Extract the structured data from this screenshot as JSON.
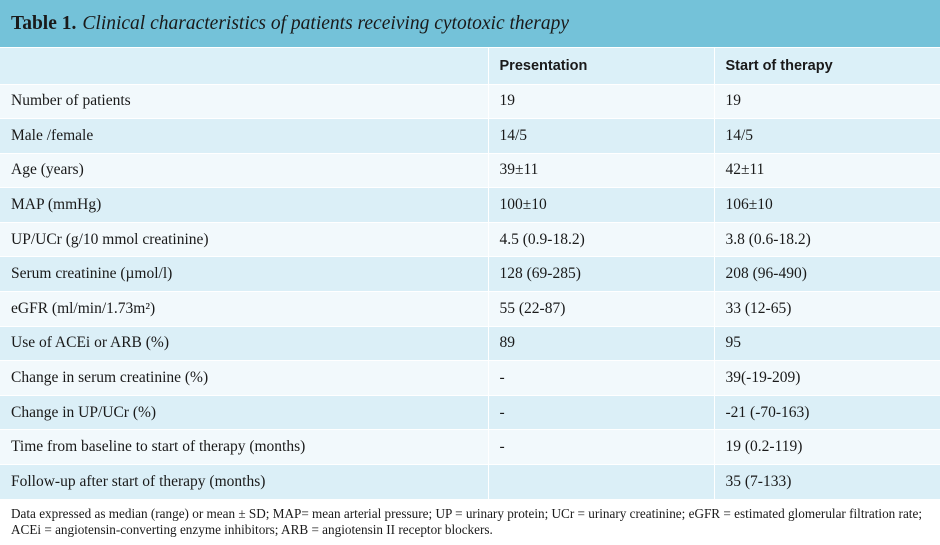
{
  "table": {
    "label": "Table 1.",
    "title": "Clinical characteristics of patients receiving cytotoxic therapy",
    "headers": [
      "",
      "Presentation",
      "Start of therapy"
    ],
    "rows": [
      [
        "Number of patients",
        "19",
        "19"
      ],
      [
        "Male /female",
        "14/5",
        "14/5"
      ],
      [
        "Age (years)",
        "39±11",
        "42±11"
      ],
      [
        "MAP (mmHg)",
        "100±10",
        "106±10"
      ],
      [
        "UP/UCr (g/10 mmol creatinine)",
        "4.5 (0.9-18.2)",
        "3.8 (0.6-18.2)"
      ],
      [
        "Serum creatinine (µmol/l)",
        "128 (69-285)",
        "208 (96-490)"
      ],
      [
        "eGFR (ml/min/1.73m²)",
        "55 (22-87)",
        "33 (12-65)"
      ],
      [
        "Use of ACEi or ARB (%)",
        "89",
        "95"
      ],
      [
        "Change in serum creatinine (%)",
        "-",
        "39(-19-209)"
      ],
      [
        "Change in UP/UCr (%)",
        "-",
        "-21 (-70-163)"
      ],
      [
        "Time from baseline to start of therapy (months)",
        "-",
        "19 (0.2-119)"
      ],
      [
        "Follow-up after start of therapy (months)",
        "",
        "35 (7-133)"
      ]
    ],
    "footnote": "Data expressed as median (range) or mean ± SD; MAP= mean arterial pressure; UP = urinary protein; UCr = urinary creatinine; eGFR = estimated glomerular filtration rate; ACEi = angiotensin-converting enzyme inhibitors; ARB = angiotensin II receptor blockers."
  },
  "colors": {
    "title_bar": "#74c2d9",
    "header_row": "#dbf0f8",
    "row_light": "#f2f9fc",
    "row_dark": "#dbeff7"
  }
}
